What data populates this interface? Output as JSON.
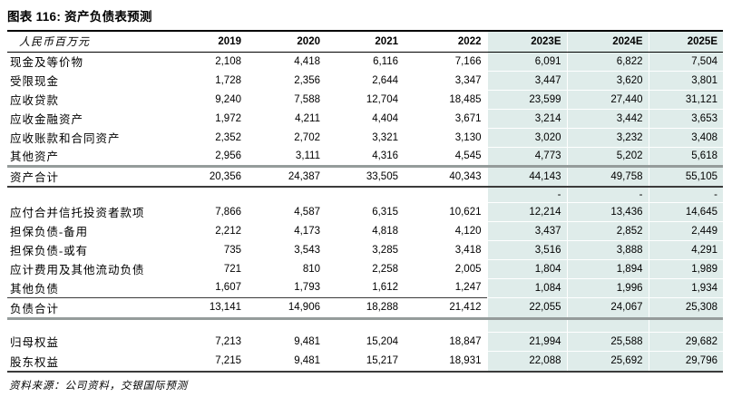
{
  "title": "图表 116: 资产负债表预测",
  "source": "资料来源：公司资料，交银国际预测",
  "colors": {
    "forecast_bg": "#dfecea",
    "heavy_rule": "#000000",
    "gray_rule": "#959c9b"
  },
  "table": {
    "unit_label": "人民币百万元",
    "columns": [
      "2019",
      "2020",
      "2021",
      "2022",
      "2023E",
      "2024E",
      "2025E"
    ],
    "forecast_start_index": 4,
    "rows": [
      {
        "label": "现金及等价物",
        "style": "data",
        "values": [
          "2,108",
          "4,418",
          "6,116",
          "7,166",
          "6,091",
          "6,822",
          "7,504"
        ]
      },
      {
        "label": "受限现金",
        "style": "data",
        "values": [
          "1,728",
          "2,356",
          "2,644",
          "3,347",
          "3,447",
          "3,620",
          "3,801"
        ]
      },
      {
        "label": "应收贷款",
        "style": "data",
        "values": [
          "9,240",
          "7,588",
          "12,704",
          "18,485",
          "23,599",
          "27,440",
          "31,121"
        ]
      },
      {
        "label": "应收金融资产",
        "style": "data",
        "values": [
          "1,972",
          "4,211",
          "4,404",
          "3,671",
          "3,214",
          "3,442",
          "3,653"
        ]
      },
      {
        "label": "应收账款和合同资产",
        "style": "data",
        "values": [
          "2,352",
          "2,702",
          "3,321",
          "3,130",
          "3,020",
          "3,232",
          "3,408"
        ]
      },
      {
        "label": "其他资产",
        "style": "data",
        "values": [
          "2,956",
          "3,111",
          "4,316",
          "4,545",
          "4,773",
          "5,202",
          "5,618"
        ]
      },
      {
        "label": "资产合计",
        "style": "total-a",
        "values": [
          "20,356",
          "24,387",
          "33,505",
          "40,343",
          "44,143",
          "49,758",
          "55,105"
        ]
      },
      {
        "label": "",
        "style": "dash",
        "values": [
          "",
          "",
          "",
          "",
          "-",
          "-",
          "-"
        ]
      },
      {
        "label": "应付合并信托投资者款项",
        "style": "data",
        "values": [
          "7,866",
          "4,587",
          "6,315",
          "10,621",
          "12,214",
          "13,436",
          "14,645"
        ]
      },
      {
        "label": "担保负债-备用",
        "style": "data",
        "values": [
          "2,212",
          "4,173",
          "4,818",
          "4,120",
          "3,437",
          "2,852",
          "2,449"
        ]
      },
      {
        "label": "担保负债-或有",
        "style": "data",
        "values": [
          "735",
          "3,543",
          "3,285",
          "3,418",
          "3,516",
          "3,888",
          "4,291"
        ]
      },
      {
        "label": "应计费用及其他流动负债",
        "style": "data",
        "values": [
          "721",
          "810",
          "2,258",
          "2,005",
          "1,804",
          "1,894",
          "1,989"
        ]
      },
      {
        "label": "其他负债",
        "style": "data",
        "values": [
          "1,607",
          "1,793",
          "1,612",
          "1,247",
          "1,084",
          "1,996",
          "1,934"
        ]
      },
      {
        "label": "负债合计",
        "style": "total-l",
        "values": [
          "13,141",
          "14,906",
          "18,288",
          "21,412",
          "22,055",
          "24,067",
          "25,308"
        ]
      },
      {
        "label": "",
        "style": "gap",
        "values": [
          "",
          "",
          "",
          "",
          "",
          "",
          ""
        ]
      },
      {
        "label": "归母权益",
        "style": "data",
        "values": [
          "7,213",
          "9,481",
          "15,204",
          "18,847",
          "21,994",
          "25,588",
          "29,682"
        ]
      },
      {
        "label": "股东权益",
        "style": "end",
        "values": [
          "7,215",
          "9,481",
          "15,217",
          "18,931",
          "22,088",
          "25,692",
          "29,796"
        ]
      }
    ]
  }
}
